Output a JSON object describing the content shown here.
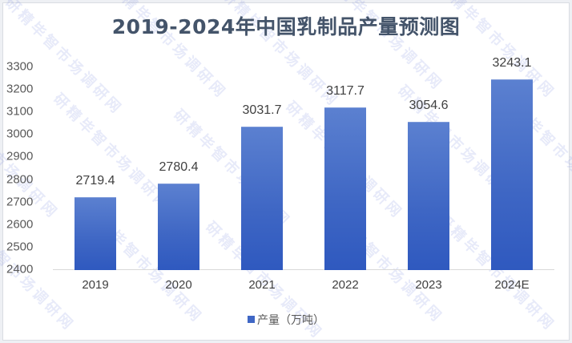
{
  "chart_data": {
    "type": "bar",
    "title": "2019-2024年中国乳制品产量预测图",
    "categories": [
      "2019",
      "2020",
      "2021",
      "2022",
      "2023",
      "2024E"
    ],
    "series": [
      {
        "name": "产量（万吨）",
        "values": [
          2719.4,
          2780.4,
          3031.7,
          3117.7,
          3054.6,
          3243.1
        ]
      }
    ],
    "value_labels": [
      "2719.4",
      "2780.4",
      "3031.7",
      "3117.7",
      "3054.6",
      "3243.1"
    ],
    "xlabel": "",
    "ylabel": "",
    "ylim": [
      2400,
      3300
    ],
    "yticks": [
      "3300",
      "3200",
      "3100",
      "3000",
      "2900",
      "2800",
      "2700",
      "2600",
      "2500",
      "2400"
    ],
    "grid": false,
    "legend_position": "bottom",
    "bar_color": "#3f67c5"
  },
  "legend": {
    "label": "产量（万吨）"
  },
  "watermark": "研精毕智市场调研网"
}
